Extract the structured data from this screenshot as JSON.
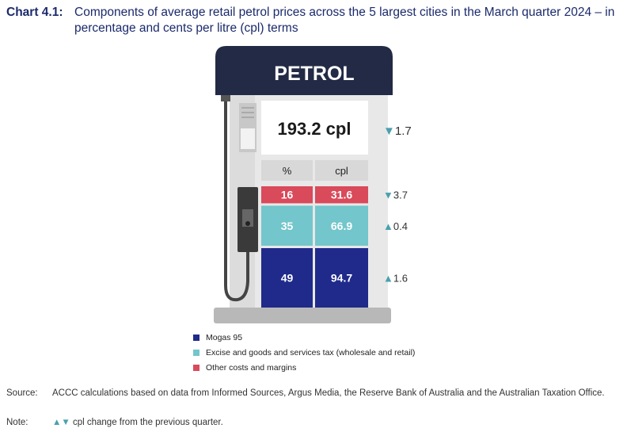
{
  "title": {
    "label": "Chart 4.1:",
    "text": "Components of average retail petrol prices across the 5 largest cities in the March quarter 2024 – in percentage and cents per litre (cpl) terms"
  },
  "pump_header": "PETROL",
  "total": {
    "value": "193.2 cpl",
    "change": "1.7",
    "direction": "down"
  },
  "columns": [
    "%",
    "cpl"
  ],
  "colors": {
    "mogas": "#1f2a8a",
    "excise": "#73c6cb",
    "other": "#d94a5b",
    "navy": "#222a45"
  },
  "chart_data": {
    "type": "bar",
    "title": "Components of average retail petrol prices across the 5 largest cities in the March quarter 2024 – in percentage and cents per litre (cpl) terms",
    "total_cpl": 193.2,
    "total_change_cpl": -1.7,
    "series": [
      {
        "name": "Other costs and margins",
        "percent": 16,
        "cpl": 31.6,
        "cpl_label": "31.6",
        "change_cpl": -3.7,
        "change_label": "3.7",
        "direction": "down",
        "color": "#d94a5b"
      },
      {
        "name": "Excise and goods and services tax (wholesale and retail)",
        "percent": 35,
        "cpl": 66.9,
        "cpl_label": "66.9",
        "change_cpl": 0.4,
        "change_label": "0.4",
        "direction": "up",
        "color": "#73c6cb"
      },
      {
        "name": "Mogas 95",
        "percent": 49,
        "cpl": 94.7,
        "cpl_label": "94.7",
        "change_cpl": 1.6,
        "change_label": "1.6",
        "direction": "up",
        "color": "#1f2a8a"
      }
    ]
  },
  "legend": [
    {
      "label": "Mogas 95",
      "color": "#1f2a8a"
    },
    {
      "label": "Excise and goods and services tax (wholesale and retail)",
      "color": "#73c6cb"
    },
    {
      "label": "Other costs and margins",
      "color": "#d94a5b"
    }
  ],
  "source": {
    "key": "Source:",
    "text": "ACCC calculations based on data from Informed Sources, Argus Media, the Reserve Bank of Australia and the Australian Taxation Office."
  },
  "note": {
    "key": "Note:",
    "symbols": "▲▼",
    "text": " cpl change from the previous quarter."
  }
}
